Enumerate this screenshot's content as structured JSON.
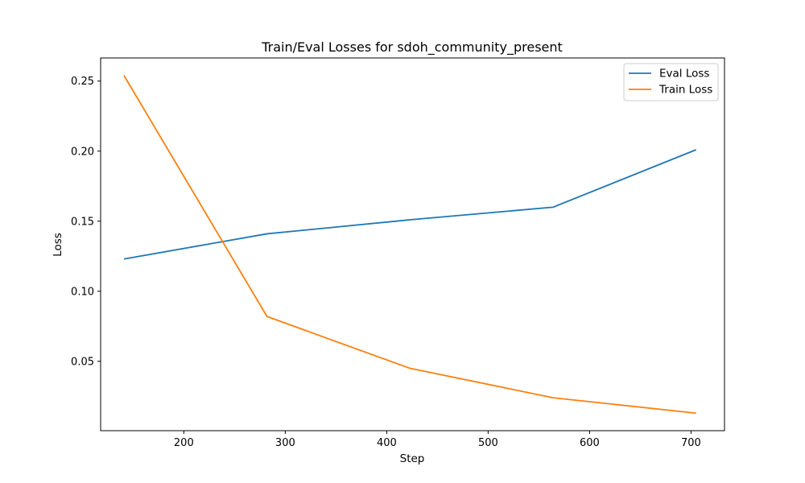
{
  "chart_data": {
    "type": "line",
    "title": "Train/Eval Losses for sdoh_community_present",
    "xlabel": "Step",
    "ylabel": "Loss",
    "xlim": [
      118,
      733
    ],
    "ylim": [
      0.0005,
      0.2665
    ],
    "xticks": [
      200,
      300,
      400,
      500,
      600,
      700
    ],
    "yticks": [
      0.05,
      0.1,
      0.15,
      0.2,
      0.25
    ],
    "xtick_labels": [
      "200",
      "300",
      "400",
      "500",
      "600",
      "700"
    ],
    "ytick_labels": [
      "0.05",
      "0.10",
      "0.15",
      "0.20",
      "0.25"
    ],
    "grid": false,
    "legend_position": "upper right",
    "series": [
      {
        "name": "Eval Loss",
        "color": "#1f77b4",
        "x": [
          141,
          282,
          423,
          564,
          705
        ],
        "y": [
          0.123,
          0.141,
          0.151,
          0.16,
          0.201
        ]
      },
      {
        "name": "Train Loss",
        "color": "#ff7f0e",
        "x": [
          141,
          282,
          423,
          564,
          705
        ],
        "y": [
          0.254,
          0.082,
          0.045,
          0.024,
          0.013
        ]
      }
    ]
  }
}
